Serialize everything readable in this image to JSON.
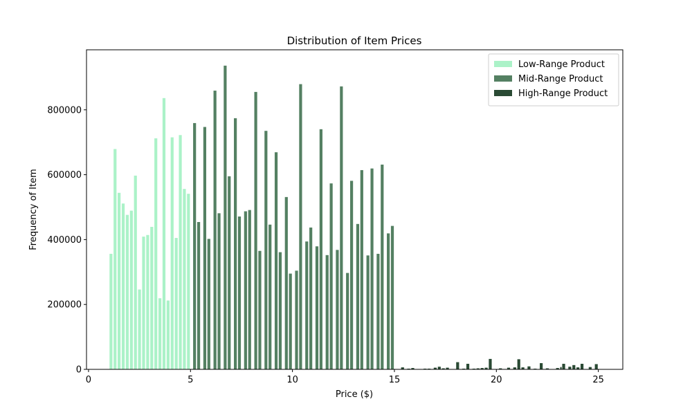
{
  "chart_data": {
    "type": "bar",
    "title": "Distribution of Item Prices",
    "xlabel": "Price ($)",
    "ylabel": "Frequency of Item",
    "xlim": [
      -0.1,
      26.2
    ],
    "ylim": [
      0,
      985000
    ],
    "xticks": [
      0,
      5,
      10,
      15,
      20,
      25
    ],
    "yticks": [
      0,
      200000,
      400000,
      600000,
      800000
    ],
    "grid": false,
    "legend_position": "top-right",
    "bar_width": 0.17,
    "series": [
      {
        "name": "Low-Range Product",
        "color": "#abf2c8",
        "x": [
          1.1,
          1.3,
          1.5,
          1.7,
          1.9,
          2.1,
          2.3,
          2.5,
          2.7,
          2.9,
          3.1,
          3.3,
          3.5,
          3.7,
          3.9,
          4.1,
          4.3,
          4.5,
          4.7,
          4.9
        ],
        "values": [
          357000,
          680000,
          545000,
          512000,
          477000,
          490000,
          598000,
          247000,
          410000,
          415000,
          440000,
          713000,
          220000,
          837000,
          213000,
          716000,
          406000,
          723000,
          557000,
          542000
        ]
      },
      {
        "name": "Mid-Range Product",
        "color": "#548062",
        "x": [
          5.2,
          5.4,
          5.7,
          5.9,
          6.2,
          6.4,
          6.7,
          6.9,
          7.2,
          7.4,
          7.7,
          7.9,
          8.2,
          8.4,
          8.7,
          8.9,
          9.2,
          9.4,
          9.7,
          9.9,
          10.2,
          10.4,
          10.7,
          10.9,
          11.2,
          11.4,
          11.7,
          11.9,
          12.2,
          12.4,
          12.7,
          12.9,
          13.2,
          13.4,
          13.7,
          13.9,
          14.2,
          14.4,
          14.7,
          14.9
        ],
        "values": [
          760000,
          455000,
          748000,
          403000,
          860000,
          482000,
          937000,
          596000,
          775000,
          472000,
          488000,
          492000,
          856000,
          366000,
          736000,
          447000,
          670000,
          362000,
          532000,
          296000,
          305000,
          880000,
          395000,
          438000,
          380000,
          741000,
          353000,
          574000,
          369000,
          873000,
          298000,
          582000,
          449000,
          615000,
          352000,
          620000,
          357000,
          632000,
          420000,
          443000
        ]
      },
      {
        "name": "High-Range Product",
        "color": "#2a4a34",
        "x": [
          15.4,
          15.7,
          15.9,
          16.2,
          16.5,
          16.7,
          17.0,
          17.2,
          17.4,
          17.6,
          18.1,
          18.4,
          18.6,
          18.9,
          19.1,
          19.3,
          19.5,
          19.7,
          20.2,
          20.4,
          20.6,
          20.9,
          21.1,
          21.3,
          21.6,
          21.9,
          22.2,
          22.5,
          23.0,
          23.2,
          23.3,
          23.6,
          23.8,
          24.0,
          24.2,
          24.6,
          24.9
        ],
        "values": [
          7000,
          3000,
          5000,
          2000,
          3000,
          3000,
          6000,
          9000,
          4000,
          6000,
          23000,
          3000,
          18000,
          3000,
          4000,
          5000,
          6000,
          33000,
          4000,
          2000,
          6000,
          7000,
          32000,
          7000,
          10000,
          3000,
          20000,
          4000,
          5000,
          8000,
          18000,
          9000,
          14000,
          7000,
          18000,
          8000,
          17000
        ]
      }
    ]
  }
}
